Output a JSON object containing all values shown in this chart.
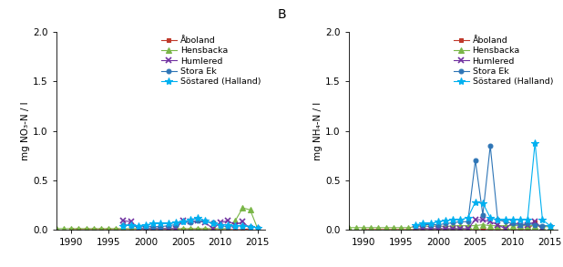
{
  "panel_B_label": "B",
  "ylabel_A": "mg NO₃-N / l",
  "ylabel_B": "mg NH₄-N / l",
  "xlim": [
    1988,
    2016
  ],
  "ylim": [
    0,
    2.0
  ],
  "yticks": [
    0.0,
    0.5,
    1.0,
    1.5,
    2.0
  ],
  "xticks": [
    1990,
    1995,
    2000,
    2005,
    2010,
    2015
  ],
  "legend_labels": [
    "Åboland",
    "Hensbacka",
    "Humlered",
    "Stora Ek",
    "Söstared (Halland)"
  ],
  "series_colors": [
    "#c0392b",
    "#7ab648",
    "#7030a0",
    "#2e75b6",
    "#00b0f0"
  ],
  "series_markers": [
    "s",
    "^",
    "x",
    "o",
    "*"
  ],
  "series_markersizes": [
    3.5,
    5,
    5,
    3.5,
    6
  ],
  "A": {
    "Aboand": {
      "years": [
        1990,
        1991,
        1992,
        1993,
        1994,
        1995,
        1996,
        1997,
        1998,
        1999,
        2000,
        2001,
        2002,
        2003,
        2004,
        2005,
        2006,
        2007,
        2008,
        2009,
        2010,
        2011,
        2012,
        2013,
        2014
      ],
      "values": [
        0.0,
        0.0,
        0.0,
        0.0,
        0.0,
        0.0,
        0.0,
        0.0,
        0.0,
        0.0,
        0.0,
        0.0,
        0.0,
        0.0,
        0.0,
        0.0,
        0.0,
        0.0,
        0.0,
        0.0,
        0.0,
        0.0,
        0.0,
        0.0,
        0.01
      ]
    },
    "Hensbacka": {
      "years": [
        1988,
        1989,
        1990,
        1991,
        1992,
        1993,
        1994,
        1995,
        1996,
        1997,
        1998,
        1999,
        2000,
        2001,
        2002,
        2003,
        2004,
        2005,
        2006,
        2007,
        2008,
        2009,
        2010,
        2011,
        2012,
        2013,
        2014,
        2015
      ],
      "values": [
        0.01,
        0.01,
        0.01,
        0.01,
        0.01,
        0.01,
        0.01,
        0.01,
        0.01,
        0.01,
        0.01,
        0.01,
        0.01,
        0.01,
        0.01,
        0.01,
        0.01,
        0.01,
        0.01,
        0.01,
        0.01,
        0.01,
        0.01,
        0.01,
        0.09,
        0.22,
        0.2,
        0.01
      ]
    },
    "Humlered": {
      "years": [
        1997,
        1998,
        1999,
        2000,
        2001,
        2002,
        2003,
        2004,
        2005,
        2006,
        2007,
        2008,
        2009,
        2010,
        2011,
        2012,
        2013,
        2014
      ],
      "values": [
        0.09,
        0.08,
        0.01,
        0.01,
        0.01,
        0.01,
        0.01,
        0.01,
        0.09,
        0.08,
        0.09,
        0.07,
        0.01,
        0.07,
        0.09,
        0.05,
        0.08,
        0.01
      ]
    },
    "Stora_Ek": {
      "years": [
        1997,
        1998,
        1999,
        2000,
        2001,
        2002,
        2003,
        2004,
        2005,
        2006,
        2007,
        2008,
        2009,
        2010,
        2011,
        2012,
        2013,
        2014,
        2015
      ],
      "values": [
        0.05,
        0.04,
        0.03,
        0.03,
        0.03,
        0.03,
        0.04,
        0.05,
        0.08,
        0.07,
        0.09,
        0.08,
        0.07,
        0.04,
        0.03,
        0.04,
        0.04,
        0.03,
        0.02
      ]
    },
    "Sostared": {
      "years": [
        1997,
        1998,
        1999,
        2000,
        2001,
        2002,
        2003,
        2004,
        2005,
        2006,
        2007,
        2008,
        2009,
        2010,
        2011,
        2012,
        2013,
        2014,
        2015
      ],
      "values": [
        0.04,
        0.05,
        0.04,
        0.05,
        0.06,
        0.06,
        0.06,
        0.07,
        0.08,
        0.1,
        0.12,
        0.09,
        0.06,
        0.05,
        0.05,
        0.04,
        0.04,
        0.03,
        0.02
      ]
    }
  },
  "B": {
    "Aboand": {
      "years": [
        1990,
        1991,
        1992,
        1993,
        1994,
        1995,
        1996,
        1997,
        1998,
        1999,
        2000,
        2001,
        2002,
        2003,
        2004,
        2005,
        2006,
        2007,
        2008,
        2009,
        2010,
        2011,
        2012,
        2013,
        2014
      ],
      "values": [
        0.0,
        0.0,
        0.0,
        0.0,
        0.0,
        0.0,
        0.0,
        0.0,
        0.0,
        0.0,
        0.0,
        0.0,
        0.0,
        0.0,
        0.0,
        0.0,
        0.0,
        0.0,
        0.0,
        0.0,
        0.0,
        0.0,
        0.0,
        0.07,
        0.01
      ]
    },
    "Hensbacka": {
      "years": [
        1988,
        1989,
        1990,
        1991,
        1992,
        1993,
        1994,
        1995,
        1996,
        1997,
        1998,
        1999,
        2000,
        2001,
        2002,
        2003,
        2004,
        2005,
        2006,
        2007,
        2008,
        2009,
        2010,
        2011,
        2012,
        2013,
        2014,
        2015
      ],
      "values": [
        0.02,
        0.02,
        0.02,
        0.02,
        0.02,
        0.02,
        0.02,
        0.02,
        0.02,
        0.03,
        0.04,
        0.03,
        0.04,
        0.03,
        0.04,
        0.04,
        0.04,
        0.04,
        0.05,
        0.04,
        0.04,
        0.04,
        0.04,
        0.04,
        0.04,
        0.04,
        0.03,
        0.03
      ]
    },
    "Humlered": {
      "years": [
        1997,
        1998,
        1999,
        2000,
        2001,
        2002,
        2003,
        2004,
        2005,
        2006,
        2007,
        2008,
        2009,
        2010,
        2011,
        2012,
        2013,
        2014
      ],
      "values": [
        0.01,
        0.01,
        0.01,
        0.01,
        0.01,
        0.01,
        0.01,
        0.01,
        0.1,
        0.1,
        0.08,
        0.05,
        0.01,
        0.07,
        0.05,
        0.05,
        0.08,
        0.01
      ]
    },
    "Stora_Ek": {
      "years": [
        1997,
        1998,
        1999,
        2000,
        2001,
        2002,
        2003,
        2004,
        2005,
        2006,
        2007,
        2008,
        2009,
        2010,
        2011,
        2012,
        2013,
        2014,
        2015
      ],
      "values": [
        0.04,
        0.05,
        0.05,
        0.05,
        0.06,
        0.07,
        0.08,
        0.08,
        0.7,
        0.15,
        0.85,
        0.1,
        0.08,
        0.06,
        0.05,
        0.06,
        0.05,
        0.04,
        0.04
      ]
    },
    "Sostared": {
      "years": [
        1997,
        1998,
        1999,
        2000,
        2001,
        2002,
        2003,
        2004,
        2005,
        2006,
        2007,
        2008,
        2009,
        2010,
        2011,
        2012,
        2013,
        2014,
        2015
      ],
      "values": [
        0.05,
        0.06,
        0.06,
        0.08,
        0.09,
        0.1,
        0.1,
        0.12,
        0.28,
        0.27,
        0.12,
        0.1,
        0.1,
        0.1,
        0.1,
        0.1,
        0.88,
        0.1,
        0.04
      ]
    }
  }
}
